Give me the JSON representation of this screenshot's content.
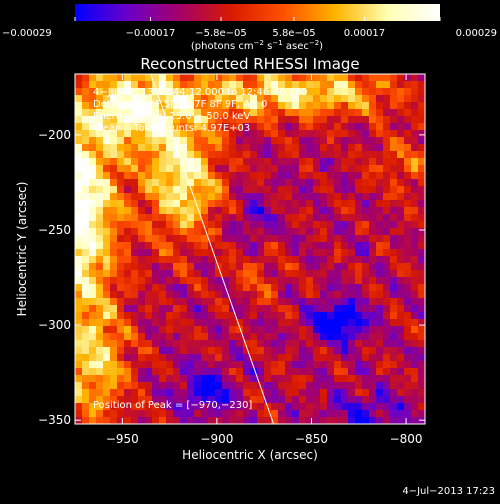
{
  "chart_data": {
    "type": "heatmap",
    "title": "Reconstructed RHESSI Image",
    "xlabel": "Heliocentric X (arcsec)",
    "ylabel": "Heliocentric Y (arcsec)",
    "xlim": [
      -975,
      -790
    ],
    "ylim": [
      -352,
      -168
    ],
    "x_ticks": [
      -950,
      -900,
      -850,
      -800
    ],
    "y_ticks": [
      -200,
      -250,
      -300,
      -350
    ],
    "x_tick_labels": [
      "−950",
      "−900",
      "−850",
      "−800"
    ],
    "y_tick_labels": [
      "−200",
      "−250",
      "−300",
      "−350"
    ],
    "colorbar": {
      "min": -0.00029,
      "max": 0.00029,
      "tick_values": [
        -0.00029,
        -0.00017,
        -5.8e-05,
        5.8e-05,
        0.00017,
        0.00029
      ],
      "tick_labels": [
        "−0.00029",
        "−0.00017",
        "−5.8e−05",
        "5.8e−05",
        "0.00017",
        "0.00029"
      ],
      "unit_parts": [
        "(photons cm",
        "−2",
        " s",
        "−1",
        " asec",
        "−2",
        ")"
      ],
      "colors": [
        "#0000ff",
        "#6a00c8",
        "#a4006a",
        "#d81a00",
        "#ff5000",
        "#ffb400",
        "#ffffb4",
        "#ffffff"
      ]
    },
    "info_lines": [
      "4−Jul−2013 12:44:12.000 to 12:46:48.000",
      "Detectors: 3F 5F 6F 7F 8F 9F, Att 0",
      "Energy Range: 25.0 − 50.0 keV",
      "Clean    Total counts: 4.97E+03"
    ],
    "peak_label": "Position of Peak = [−970,−230]",
    "peak": [
      -970,
      -230
    ],
    "limb": [
      [
        -935,
        -168
      ],
      [
        -870,
        -352
      ]
    ],
    "hot_regions": [
      {
        "x": -975,
        "y": -240,
        "sx": 22,
        "sy": 50,
        "amp": 0.00042
      },
      {
        "x": -940,
        "y": -185,
        "sx": 28,
        "sy": 22,
        "amp": 0.00034
      },
      {
        "x": -918,
        "y": -225,
        "sx": 20,
        "sy": 30,
        "amp": 0.0003
      },
      {
        "x": -965,
        "y": -320,
        "sx": 18,
        "sy": 32,
        "amp": 0.00024
      },
      {
        "x": -875,
        "y": -178,
        "sx": 40,
        "sy": 14,
        "amp": 0.00024
      },
      {
        "x": -830,
        "y": -178,
        "sx": 30,
        "sy": 12,
        "amp": 0.00016
      },
      {
        "x": -800,
        "y": -215,
        "sx": 18,
        "sy": 18,
        "amp": 0.00011
      },
      {
        "x": -880,
        "y": -275,
        "sx": 14,
        "sy": 14,
        "amp": 0.0001
      }
    ],
    "cold_regions": [
      {
        "x": -835,
        "y": -298,
        "sx": 14,
        "sy": 10,
        "amp": -0.0003
      },
      {
        "x": -905,
        "y": -335,
        "sx": 14,
        "sy": 12,
        "amp": -0.0002
      },
      {
        "x": -880,
        "y": -245,
        "sx": 10,
        "sy": 10,
        "amp": -0.00014
      },
      {
        "x": -820,
        "y": -345,
        "sx": 22,
        "sy": 10,
        "amp": -0.00014
      }
    ]
  },
  "footer": {
    "timestamp": "4−Jul−2013 17:23"
  }
}
